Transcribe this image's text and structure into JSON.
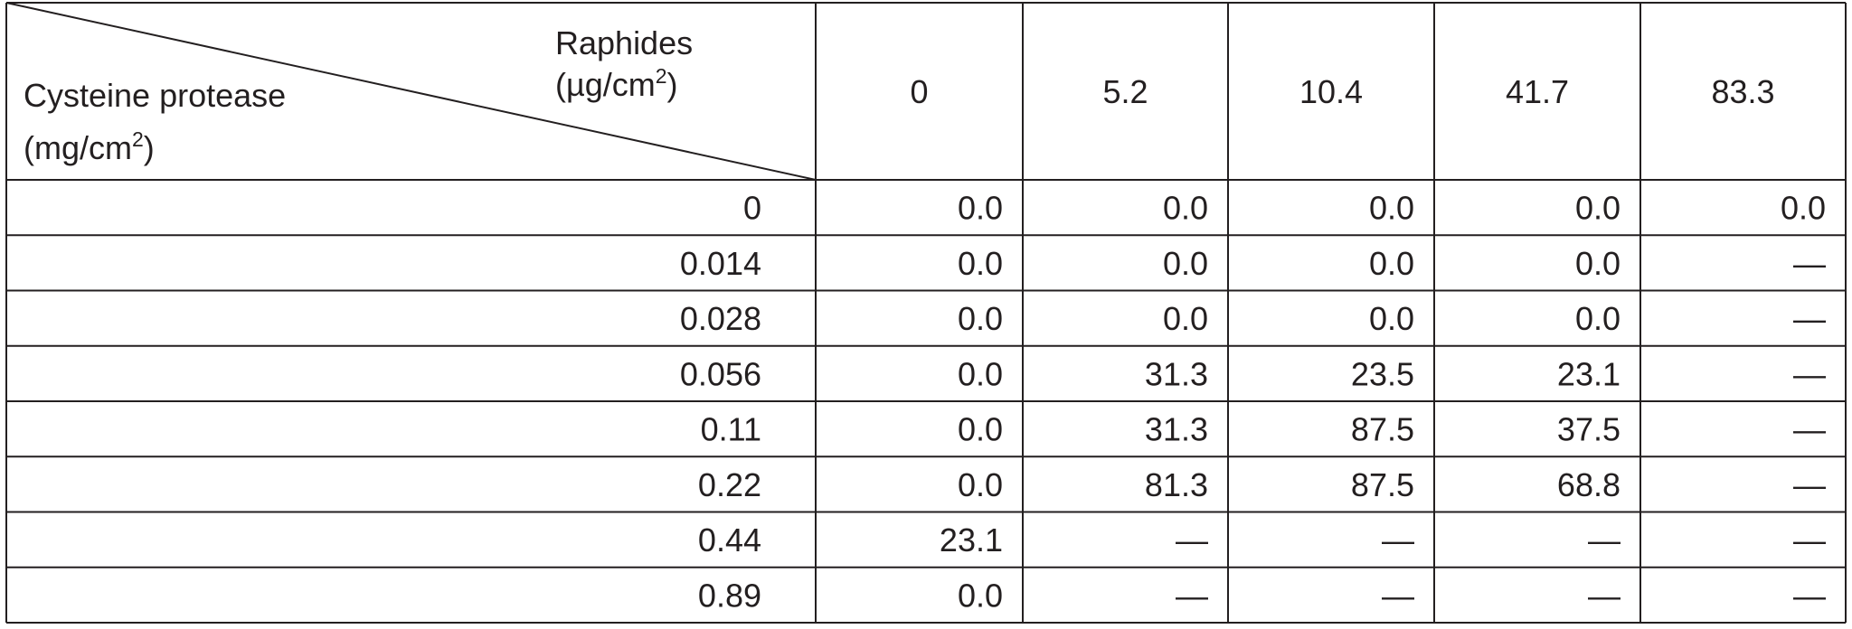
{
  "header": {
    "row_label": "Cysteine protease",
    "row_unit": {
      "open": "(mg/cm",
      "sup": "2",
      "close": ")"
    },
    "col_label": "Raphides",
    "col_unit": {
      "open": "(µg/cm",
      "sup": "2",
      "close": ")"
    },
    "columns": [
      "0",
      "5.2",
      "10.4",
      "41.7",
      "83.3"
    ]
  },
  "table": {
    "rows": [
      {
        "label": "0",
        "cells": [
          "0.0",
          "0.0",
          "0.0",
          "0.0",
          "0.0"
        ]
      },
      {
        "label": "0.014",
        "cells": [
          "0.0",
          "0.0",
          "0.0",
          "0.0",
          "—"
        ]
      },
      {
        "label": "0.028",
        "cells": [
          "0.0",
          "0.0",
          "0.0",
          "0.0",
          "—"
        ]
      },
      {
        "label": "0.056",
        "cells": [
          "0.0",
          "31.3",
          "23.5",
          "23.1",
          "—"
        ]
      },
      {
        "label": "0.11",
        "cells": [
          "0.0",
          "31.3",
          "87.5",
          "37.5",
          "—"
        ]
      },
      {
        "label": "0.22",
        "cells": [
          "0.0",
          "81.3",
          "87.5",
          "68.8",
          "—"
        ]
      },
      {
        "label": "0.44",
        "cells": [
          "23.1",
          "—",
          "—",
          "—",
          "—"
        ]
      },
      {
        "label": "0.89",
        "cells": [
          "0.0",
          "—",
          "—",
          "—",
          "—"
        ]
      }
    ]
  }
}
